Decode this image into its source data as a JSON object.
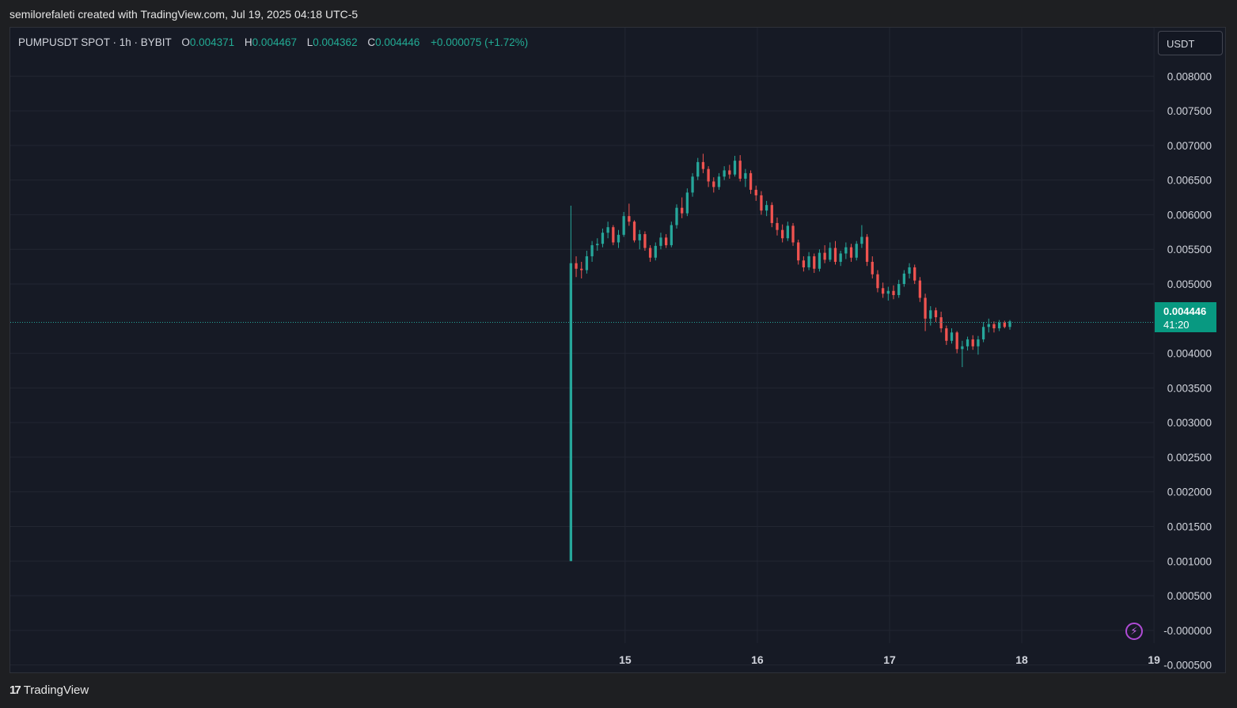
{
  "header": {
    "attribution": "semilorefaleti created with TradingView.com, Jul 19, 2025 04:18 UTC-5"
  },
  "legend": {
    "symbol": "PUMPUSDT SPOT · 1h · BYBIT",
    "o_label": "O",
    "o_value": "0.004371",
    "h_label": "H",
    "h_value": "0.004467",
    "l_label": "L",
    "l_value": "0.004362",
    "c_label": "C",
    "c_value": "0.004446",
    "change": "+0.000075 (+1.72%)"
  },
  "currency_button": {
    "label": "USDT"
  },
  "last_price": {
    "value": "0.004446",
    "countdown": "41:20"
  },
  "footer": {
    "brand": "TradingView",
    "mark": "17"
  },
  "colors": {
    "background": "#161a25",
    "grid": "#222632",
    "up": "#26a69a",
    "down": "#ef5350",
    "badge": "#089981",
    "axis_text": "#d1d4dc"
  },
  "chart_data": {
    "type": "candlestick",
    "symbol": "PUMPUSDT",
    "interval": "1h",
    "exchange": "BYBIT",
    "y_ticks": [
      "0.008000",
      "0.007500",
      "0.007000",
      "0.006500",
      "0.006000",
      "0.005500",
      "0.005000",
      "0.004000",
      "0.003500",
      "0.003000",
      "0.002500",
      "0.002000",
      "0.001500",
      "0.001000",
      "0.000500",
      "-0.000000",
      "-0.000500"
    ],
    "ylim": [
      -0.00063,
      0.0087
    ],
    "x_ticks": [
      "15",
      "16",
      "17",
      "18",
      "19"
    ],
    "xlim": [
      10.35,
      19.55
    ],
    "last_price": 0.004446,
    "grid": true,
    "candles": [
      [
        14.59,
        0.001,
        0.00613,
        0.001,
        0.0053
      ],
      [
        14.63,
        0.0053,
        0.0054,
        0.0051,
        0.00522
      ],
      [
        14.67,
        0.00522,
        0.00532,
        0.00508,
        0.0052
      ],
      [
        14.71,
        0.0052,
        0.00548,
        0.00515,
        0.0054
      ],
      [
        14.75,
        0.0054,
        0.00562,
        0.00532,
        0.00556
      ],
      [
        14.79,
        0.00556,
        0.00566,
        0.00548,
        0.00558
      ],
      [
        14.83,
        0.00558,
        0.0058,
        0.00553,
        0.00574
      ],
      [
        14.87,
        0.00574,
        0.0059,
        0.00566,
        0.00582
      ],
      [
        14.91,
        0.00582,
        0.00585,
        0.00556,
        0.0056
      ],
      [
        14.95,
        0.0056,
        0.00578,
        0.00552,
        0.00571
      ],
      [
        14.99,
        0.00571,
        0.00604,
        0.00568,
        0.00598
      ],
      [
        15.03,
        0.00598,
        0.00616,
        0.00584,
        0.0059
      ],
      [
        15.07,
        0.0059,
        0.00592,
        0.0056,
        0.00563
      ],
      [
        15.11,
        0.00563,
        0.00578,
        0.0055,
        0.00572
      ],
      [
        15.15,
        0.00572,
        0.00576,
        0.00548,
        0.00552
      ],
      [
        15.19,
        0.00552,
        0.00556,
        0.00532,
        0.00538
      ],
      [
        15.23,
        0.00538,
        0.0056,
        0.00534,
        0.00555
      ],
      [
        15.27,
        0.00555,
        0.00574,
        0.0055,
        0.00567
      ],
      [
        15.31,
        0.00567,
        0.00572,
        0.00552,
        0.00556
      ],
      [
        15.35,
        0.00556,
        0.0059,
        0.00553,
        0.00585
      ],
      [
        15.39,
        0.00585,
        0.00615,
        0.0058,
        0.0061
      ],
      [
        15.43,
        0.0061,
        0.00625,
        0.00595,
        0.00602
      ],
      [
        15.47,
        0.00602,
        0.00638,
        0.00598,
        0.00632
      ],
      [
        15.51,
        0.00632,
        0.0066,
        0.00626,
        0.00655
      ],
      [
        15.55,
        0.00655,
        0.00682,
        0.0065,
        0.00676
      ],
      [
        15.59,
        0.00676,
        0.00688,
        0.0066,
        0.00666
      ],
      [
        15.63,
        0.00666,
        0.0067,
        0.0064,
        0.00648
      ],
      [
        15.67,
        0.00648,
        0.00654,
        0.00632,
        0.0064
      ],
      [
        15.71,
        0.0064,
        0.0066,
        0.00636,
        0.00655
      ],
      [
        15.75,
        0.00655,
        0.0067,
        0.0065,
        0.00664
      ],
      [
        15.79,
        0.00664,
        0.00672,
        0.00652,
        0.00658
      ],
      [
        15.83,
        0.00658,
        0.00685,
        0.00655,
        0.00678
      ],
      [
        15.87,
        0.00678,
        0.00686,
        0.00648,
        0.00652
      ],
      [
        15.91,
        0.00652,
        0.00666,
        0.0064,
        0.0066
      ],
      [
        15.95,
        0.0066,
        0.00664,
        0.0063,
        0.00636
      ],
      [
        15.99,
        0.00636,
        0.00642,
        0.0062,
        0.00628
      ],
      [
        16.03,
        0.00628,
        0.00634,
        0.006,
        0.00606
      ],
      [
        16.07,
        0.00606,
        0.0062,
        0.00598,
        0.00614
      ],
      [
        16.11,
        0.00614,
        0.00618,
        0.00582,
        0.00588
      ],
      [
        16.15,
        0.00588,
        0.00596,
        0.0057,
        0.00578
      ],
      [
        16.19,
        0.00578,
        0.00586,
        0.0056,
        0.00566
      ],
      [
        16.23,
        0.00566,
        0.0059,
        0.00562,
        0.00584
      ],
      [
        16.27,
        0.00584,
        0.00588,
        0.00555,
        0.0056
      ],
      [
        16.31,
        0.0056,
        0.00564,
        0.00528,
        0.00534
      ],
      [
        16.35,
        0.00534,
        0.0054,
        0.00518,
        0.00524
      ],
      [
        16.39,
        0.00524,
        0.00546,
        0.0052,
        0.0054
      ],
      [
        16.43,
        0.0054,
        0.00544,
        0.00516,
        0.00522
      ],
      [
        16.47,
        0.00522,
        0.0055,
        0.00518,
        0.00545
      ],
      [
        16.51,
        0.00545,
        0.00556,
        0.0053,
        0.00535
      ],
      [
        16.55,
        0.00535,
        0.0056,
        0.00532,
        0.00552
      ],
      [
        16.59,
        0.00552,
        0.00562,
        0.00528,
        0.00532
      ],
      [
        16.63,
        0.00532,
        0.00548,
        0.00526,
        0.00544
      ],
      [
        16.67,
        0.00544,
        0.0056,
        0.00536,
        0.00553
      ],
      [
        16.71,
        0.00553,
        0.00558,
        0.00532,
        0.00538
      ],
      [
        16.75,
        0.00538,
        0.00562,
        0.00534,
        0.00558
      ],
      [
        16.79,
        0.00558,
        0.00585,
        0.00552,
        0.00568
      ],
      [
        16.83,
        0.00568,
        0.00572,
        0.00526,
        0.00532
      ],
      [
        16.87,
        0.00532,
        0.0054,
        0.00508,
        0.00514
      ],
      [
        16.91,
        0.00514,
        0.0052,
        0.00488,
        0.00494
      ],
      [
        16.95,
        0.00494,
        0.00502,
        0.0048,
        0.00486
      ],
      [
        16.99,
        0.00486,
        0.00496,
        0.00476,
        0.0049
      ],
      [
        17.03,
        0.0049,
        0.00498,
        0.00478,
        0.00484
      ],
      [
        17.07,
        0.00484,
        0.00506,
        0.0048,
        0.005
      ],
      [
        17.11,
        0.005,
        0.0052,
        0.00496,
        0.00515
      ],
      [
        17.15,
        0.00515,
        0.0053,
        0.00508,
        0.00524
      ],
      [
        17.19,
        0.00524,
        0.00528,
        0.005,
        0.00505
      ],
      [
        17.23,
        0.00505,
        0.0051,
        0.00474,
        0.0048
      ],
      [
        17.27,
        0.0048,
        0.00486,
        0.00432,
        0.0045
      ],
      [
        17.31,
        0.0045,
        0.00468,
        0.0044,
        0.00462
      ],
      [
        17.35,
        0.00462,
        0.00466,
        0.00445,
        0.00452
      ],
      [
        17.39,
        0.00452,
        0.0046,
        0.0043,
        0.00436
      ],
      [
        17.43,
        0.00436,
        0.0044,
        0.00412,
        0.00418
      ],
      [
        17.47,
        0.00418,
        0.00436,
        0.00414,
        0.0043
      ],
      [
        17.51,
        0.0043,
        0.00432,
        0.004,
        0.00406
      ],
      [
        17.55,
        0.00406,
        0.00418,
        0.0038,
        0.0041
      ],
      [
        17.59,
        0.0041,
        0.00424,
        0.00404,
        0.0042
      ],
      [
        17.63,
        0.0042,
        0.00426,
        0.00405,
        0.0041
      ],
      [
        17.67,
        0.0041,
        0.00425,
        0.00398,
        0.0042
      ],
      [
        17.71,
        0.0042,
        0.00445,
        0.00416,
        0.00438
      ],
      [
        17.75,
        0.00438,
        0.0045,
        0.0043,
        0.00442
      ],
      [
        17.79,
        0.00442,
        0.00446,
        0.0043,
        0.00436
      ],
      [
        17.83,
        0.00436,
        0.00448,
        0.00432,
        0.00444
      ],
      [
        17.87,
        0.00444,
        0.00447,
        0.00436,
        0.00438
      ],
      [
        17.91,
        0.00438,
        0.00448,
        0.00434,
        0.00446
      ]
    ]
  }
}
